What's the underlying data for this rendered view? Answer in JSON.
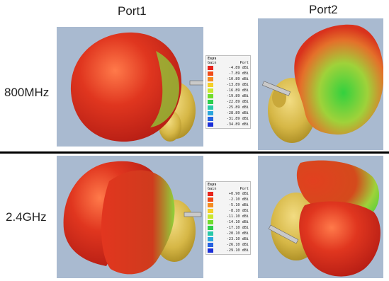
{
  "columns": [
    "Port1",
    "Port2"
  ],
  "rows": [
    "800MHz",
    "2.4GHz"
  ],
  "legends": [
    {
      "title": "Esys",
      "gain_label": "Gain",
      "port_label": "Port",
      "entries": [
        {
          "value": "-4.89 dBi",
          "color": "#e8241c"
        },
        {
          "value": "-7.89 dBi",
          "color": "#f04a18"
        },
        {
          "value": "-10.89 dBi",
          "color": "#f58a20"
        },
        {
          "value": "-13.89 dBi",
          "color": "#f5cf28"
        },
        {
          "value": "-16.89 dBi",
          "color": "#c9e82e"
        },
        {
          "value": "-19.89 dBi",
          "color": "#6fdc2c"
        },
        {
          "value": "-22.89 dBi",
          "color": "#2ccf4c"
        },
        {
          "value": "-25.89 dBi",
          "color": "#27c9a8"
        },
        {
          "value": "-28.89 dBi",
          "color": "#2aa6dc"
        },
        {
          "value": "-31.89 dBi",
          "color": "#2662e0"
        },
        {
          "value": "-34.89 dBi",
          "color": "#1b2fd8"
        }
      ]
    },
    {
      "title": "Esys",
      "gain_label": "Gain",
      "port_label": "Port",
      "entries": [
        {
          "value": "+0.90 dBi",
          "color": "#e8241c"
        },
        {
          "value": "-2.10 dBi",
          "color": "#f04a18"
        },
        {
          "value": "-5.10 dBi",
          "color": "#f58a20"
        },
        {
          "value": "-8.10 dBi",
          "color": "#f5cf28"
        },
        {
          "value": "-11.10 dBi",
          "color": "#c9e82e"
        },
        {
          "value": "-14.10 dBi",
          "color": "#6fdc2c"
        },
        {
          "value": "-17.10 dBi",
          "color": "#2ccf4c"
        },
        {
          "value": "-20.10 dBi",
          "color": "#27c9a8"
        },
        {
          "value": "-23.10 dBi",
          "color": "#2aa6dc"
        },
        {
          "value": "-26.10 dBi",
          "color": "#2662e0"
        },
        {
          "value": "-29.10 dBi",
          "color": "#1b2fd8"
        }
      ]
    }
  ],
  "colors": {
    "panel_background": "#a9bad0",
    "head": "#d9bc4a",
    "pattern_high": "#d9261c",
    "pattern_low": "#3fcf3a"
  }
}
